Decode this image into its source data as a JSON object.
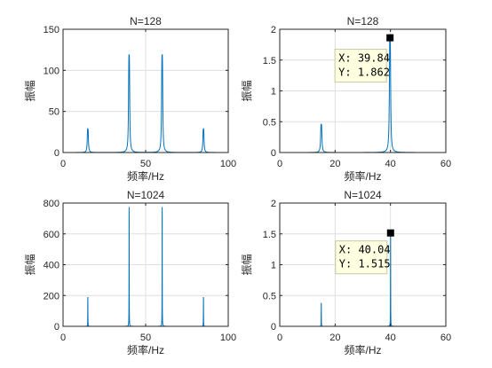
{
  "chart_data": [
    {
      "type": "line",
      "title": "N=128",
      "xlabel": "频率/Hz",
      "ylabel": "振幅",
      "xlim": [
        0,
        100
      ],
      "ylim": [
        0,
        150
      ],
      "xticks": [
        "0",
        "50",
        "100"
      ],
      "yticks": [
        "0",
        "50",
        "100",
        "150"
      ],
      "grid": true,
      "series": [
        {
          "peaks": [
            {
              "x": 15,
              "y": 29
            },
            {
              "x": 40,
              "y": 119
            },
            {
              "x": 60,
              "y": 119
            },
            {
              "x": 85,
              "y": 29
            }
          ],
          "x_range": [
            0,
            100
          ],
          "linewidth_hz": 0.3
        }
      ]
    },
    {
      "type": "line",
      "title": "N=128",
      "xlabel": "频率/Hz",
      "ylabel": "振幅",
      "xlim": [
        0,
        60
      ],
      "ylim": [
        0,
        2
      ],
      "xticks": [
        "0",
        "20",
        "40",
        "60"
      ],
      "yticks": [
        "0",
        "0.5",
        "1",
        "1.5",
        "2"
      ],
      "grid": true,
      "series": [
        {
          "peaks": [
            {
              "x": 15,
              "y": 0.46
            },
            {
              "x": 39.84,
              "y": 1.862
            }
          ],
          "x_range": [
            0,
            50
          ],
          "linewidth_hz": 0.2
        }
      ],
      "datatip": {
        "x": 39.84,
        "y": 1.862,
        "label_x": "X: 39.84",
        "label_y": "Y: 1.862"
      }
    },
    {
      "type": "line",
      "title": "N=1024",
      "xlabel": "频率/Hz",
      "ylabel": "振幅",
      "xlim": [
        0,
        100
      ],
      "ylim": [
        0,
        800
      ],
      "xticks": [
        "0",
        "50",
        "100"
      ],
      "yticks": [
        "0",
        "200",
        "400",
        "600",
        "800"
      ],
      "grid": true,
      "series": [
        {
          "peaks": [
            {
              "x": 15,
              "y": 190
            },
            {
              "x": 40,
              "y": 775
            },
            {
              "x": 60,
              "y": 775
            },
            {
              "x": 85,
              "y": 190
            }
          ],
          "x_range": [
            0,
            100
          ],
          "linewidth_hz": 0.05
        }
      ]
    },
    {
      "type": "line",
      "title": "N=1024",
      "xlabel": "频率/Hz",
      "ylabel": "振幅",
      "xlim": [
        0,
        60
      ],
      "ylim": [
        0,
        2
      ],
      "xticks": [
        "0",
        "20",
        "40",
        "60"
      ],
      "yticks": [
        "0",
        "0.5",
        "1",
        "1.5",
        "2"
      ],
      "grid": true,
      "series": [
        {
          "peaks": [
            {
              "x": 15,
              "y": 0.38
            },
            {
              "x": 40.04,
              "y": 1.515
            }
          ],
          "x_range": [
            0,
            50
          ],
          "linewidth_hz": 0.03
        }
      ],
      "datatip": {
        "x": 40.04,
        "y": 1.515,
        "label_x": "X: 40.04",
        "label_y": "Y: 1.515"
      }
    }
  ],
  "colors": {
    "line": "#0072bd",
    "grid": "#dfdfdf",
    "axis": "#262626",
    "datatip_bg": "#ffffe1",
    "datatip_border": "#c8c8a0",
    "marker": "#000000"
  }
}
